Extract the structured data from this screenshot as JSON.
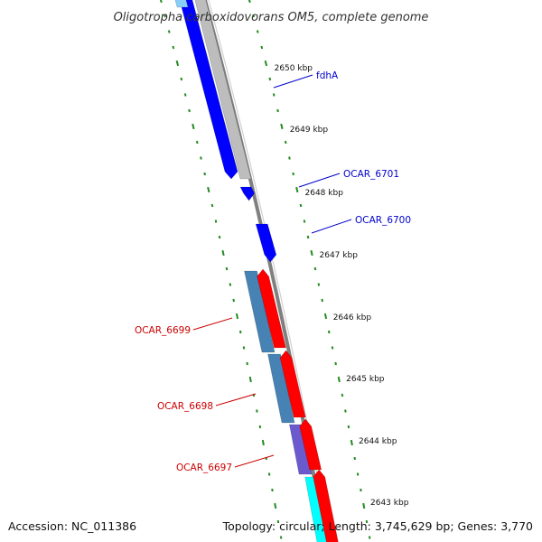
{
  "title": "Oligotropha carboxidovorans OM5, complete genome",
  "footer": {
    "accession": "Accession: NC_011386",
    "summary": "Topology: circular; Length: 3,745,629 bp; Genes: 3,770"
  },
  "colors": {
    "backbone": "#808080",
    "forward_blue": "#0000ff",
    "reverse_red": "#ff0000",
    "steelblue": "#4682b4",
    "slateblue": "#6a5acd",
    "cyan": "#00ffff",
    "gray_feature": "#bdbdbd",
    "tick_green": "#228b22",
    "label_blue": "#0000cc",
    "label_red": "#cc0000"
  },
  "ticks": [
    {
      "label": "2650 kbp"
    },
    {
      "label": "2649 kbp"
    },
    {
      "label": "2648 kbp"
    },
    {
      "label": "2647 kbp"
    },
    {
      "label": "2646 kbp"
    },
    {
      "label": "2645 kbp"
    },
    {
      "label": "2644 kbp"
    },
    {
      "label": "2643 kbp"
    }
  ],
  "gene_labels": [
    {
      "text": "fdhA",
      "color": "#0000cc"
    },
    {
      "text": "OCAR_6701",
      "color": "#0000cc"
    },
    {
      "text": "OCAR_6700",
      "color": "#0000cc"
    },
    {
      "text": "OCAR_6699",
      "color": "#cc0000"
    },
    {
      "text": "OCAR_6698",
      "color": "#cc0000"
    },
    {
      "text": "OCAR_6697",
      "color": "#cc0000"
    }
  ]
}
